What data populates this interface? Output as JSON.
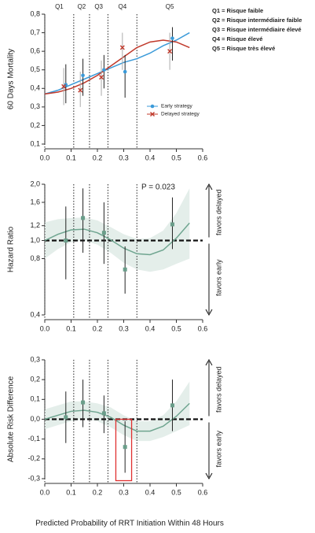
{
  "chart_data": [
    {
      "type": "line",
      "ylabel": "60 Days Mortality",
      "xlim": [
        0,
        0.6
      ],
      "xticks": [
        {
          "value": 0,
          "label": "0.0"
        },
        0.1,
        0.2,
        0.3,
        0.4,
        0.5,
        0.6
      ],
      "ylim": [
        0.1,
        0.8
      ],
      "yticks": [
        {
          "value": 0.1,
          "label": "0,1"
        },
        {
          "value": 0.2,
          "label": "0,2"
        },
        {
          "value": 0.3,
          "label": "0,3"
        },
        {
          "value": 0.4,
          "label": "0,4"
        },
        {
          "value": 0.5,
          "label": "0,5"
        },
        {
          "value": 0.6,
          "label": "0,6"
        },
        {
          "value": 0.7,
          "label": "0,7"
        },
        {
          "value": 0.8,
          "label": "0,8"
        }
      ],
      "vlines": [
        0.11,
        0.17,
        0.24,
        0.35
      ],
      "quintiles": [
        "Q1",
        "Q2",
        "Q3",
        "Q4",
        "Q5"
      ],
      "risk_legend": [
        "Q1 = Risque faible",
        "Q2 = Risque intermédiaire faible",
        "Q3 = Risque intermédiaire élevé",
        "Q4 = Risque élevé",
        "Q5 = Risque très élevé"
      ],
      "series": [
        {
          "name": "Early strategy",
          "color": "#3a9ad9",
          "marker": "circle",
          "bar_color": "#222222",
          "x": [
            0.08,
            0.145,
            0.225,
            0.305,
            0.485
          ],
          "values": [
            0.42,
            0.47,
            0.5,
            0.49,
            0.67
          ],
          "lower": [
            0.32,
            0.36,
            0.4,
            0.35,
            0.55
          ],
          "upper": [
            0.53,
            0.56,
            0.58,
            0.58,
            0.73
          ]
        },
        {
          "name": "Delayed strategy",
          "color": "#c0392b",
          "marker": "cross",
          "bar_color": "#aaaaaa",
          "x": [
            0.072,
            0.135,
            0.215,
            0.295,
            0.475
          ],
          "values": [
            0.41,
            0.39,
            0.46,
            0.62,
            0.6
          ],
          "lower": [
            0.31,
            0.3,
            0.36,
            0.5,
            0.5
          ],
          "upper": [
            0.51,
            0.49,
            0.55,
            0.7,
            0.7
          ]
        }
      ],
      "curves": [
        {
          "color": "#3a9ad9",
          "x": [
            0,
            0.05,
            0.1,
            0.15,
            0.2,
            0.25,
            0.3,
            0.35,
            0.4,
            0.45,
            0.5,
            0.55
          ],
          "values": [
            0.37,
            0.39,
            0.42,
            0.45,
            0.48,
            0.51,
            0.54,
            0.56,
            0.59,
            0.63,
            0.66,
            0.7
          ]
        },
        {
          "color": "#c0392b",
          "x": [
            0,
            0.05,
            0.1,
            0.15,
            0.2,
            0.25,
            0.3,
            0.35,
            0.4,
            0.45,
            0.5,
            0.55
          ],
          "values": [
            0.37,
            0.38,
            0.4,
            0.43,
            0.47,
            0.52,
            0.57,
            0.62,
            0.65,
            0.66,
            0.65,
            0.62
          ]
        }
      ]
    },
    {
      "type": "line",
      "ylabel": "Hazard Ratio",
      "log_scale": true,
      "xlim": [
        0,
        0.6
      ],
      "xticks": [
        {
          "value": 0,
          "label": "0.0"
        },
        0.1,
        0.2,
        0.3,
        0.4,
        0.5,
        0.6
      ],
      "ylim": [
        0.4,
        2.0
      ],
      "yticks": [
        {
          "value": 0.4,
          "label": "0,4"
        },
        {
          "value": 0.8,
          "label": "0,8"
        },
        {
          "value": 1.0,
          "label": "1,0"
        },
        {
          "value": 1.2,
          "label": "1,2"
        },
        {
          "value": 1.6,
          "label": "1,6"
        },
        {
          "value": 2.0,
          "label": "2,0"
        }
      ],
      "vlines": [
        0.11,
        0.17,
        0.24,
        0.35
      ],
      "ref_line": 1.0,
      "annotation": "P = 0.023",
      "favors_up": "favors delayed",
      "favors_down": "favors early",
      "series": [
        {
          "color": "#6a9e8a",
          "marker": "square",
          "bar_color": "#222222",
          "x": [
            0.08,
            0.145,
            0.225,
            0.305,
            0.485
          ],
          "values": [
            1.0,
            1.32,
            1.1,
            0.7,
            1.22
          ],
          "lower": [
            0.62,
            0.86,
            0.75,
            0.52,
            0.9
          ],
          "upper": [
            1.52,
            1.9,
            1.6,
            0.93,
            1.7
          ]
        }
      ],
      "curves": [
        {
          "color": "#6fa590",
          "x": [
            0,
            0.05,
            0.1,
            0.15,
            0.2,
            0.25,
            0.3,
            0.35,
            0.4,
            0.45,
            0.5,
            0.55
          ],
          "values": [
            1.0,
            1.08,
            1.14,
            1.15,
            1.1,
            1.01,
            0.91,
            0.85,
            0.84,
            0.89,
            1.03,
            1.24
          ],
          "band_lower": [
            0.8,
            0.9,
            0.98,
            1.0,
            0.95,
            0.86,
            0.76,
            0.7,
            0.68,
            0.7,
            0.75,
            0.8
          ],
          "band_upper": [
            1.25,
            1.3,
            1.32,
            1.33,
            1.28,
            1.18,
            1.08,
            1.02,
            1.03,
            1.13,
            1.4,
            1.9
          ]
        }
      ]
    },
    {
      "type": "line",
      "ylabel": "Absolute Risk Difference",
      "xlim": [
        0,
        0.6
      ],
      "xticks": [
        {
          "value": 0,
          "label": "0.0"
        },
        0.1,
        0.2,
        0.3,
        0.4,
        0.5,
        0.6
      ],
      "ylim": [
        -0.3,
        0.3
      ],
      "yticks": [
        {
          "value": -0.3,
          "label": "-0,3"
        },
        {
          "value": -0.2,
          "label": "-0,2"
        },
        {
          "value": -0.1,
          "label": "-0,1"
        },
        {
          "value": 0,
          "label": "0,0"
        },
        {
          "value": 0.1,
          "label": "0,1"
        },
        {
          "value": 0.2,
          "label": "0,2"
        },
        {
          "value": 0.3,
          "label": "0,3"
        }
      ],
      "vlines": [
        0.11,
        0.17,
        0.24,
        0.35
      ],
      "ref_line": 0,
      "favors_up": "favors delayed",
      "favors_down": "favors early",
      "highlight": {
        "x": [
          0.27,
          0.33
        ],
        "y": [
          -0.31,
          0.0
        ],
        "color": "#e03030"
      },
      "xlabel": "Predicted Probability of RRT Initiation Within 48 Hours",
      "series": [
        {
          "color": "#6a9e8a",
          "marker": "square",
          "bar_color": "#222222",
          "x": [
            0.08,
            0.145,
            0.225,
            0.305,
            0.485
          ],
          "values": [
            0.01,
            0.085,
            0.03,
            -0.14,
            0.07
          ],
          "lower": [
            -0.12,
            -0.04,
            -0.07,
            -0.27,
            -0.06
          ],
          "upper": [
            0.14,
            0.2,
            0.12,
            -0.01,
            0.2
          ]
        }
      ],
      "curves": [
        {
          "color": "#6fa590",
          "x": [
            0,
            0.05,
            0.1,
            0.15,
            0.2,
            0.25,
            0.3,
            0.35,
            0.4,
            0.45,
            0.5,
            0.55
          ],
          "values": [
            0.0,
            0.02,
            0.04,
            0.045,
            0.035,
            0.01,
            -0.03,
            -0.06,
            -0.06,
            -0.035,
            0.015,
            0.08
          ],
          "band_lower": [
            -0.05,
            -0.03,
            -0.01,
            0.0,
            -0.01,
            -0.04,
            -0.08,
            -0.11,
            -0.11,
            -0.09,
            -0.06,
            -0.03
          ],
          "band_upper": [
            0.05,
            0.07,
            0.09,
            0.09,
            0.08,
            0.06,
            0.02,
            -0.01,
            -0.01,
            0.02,
            0.09,
            0.19
          ]
        }
      ]
    }
  ]
}
